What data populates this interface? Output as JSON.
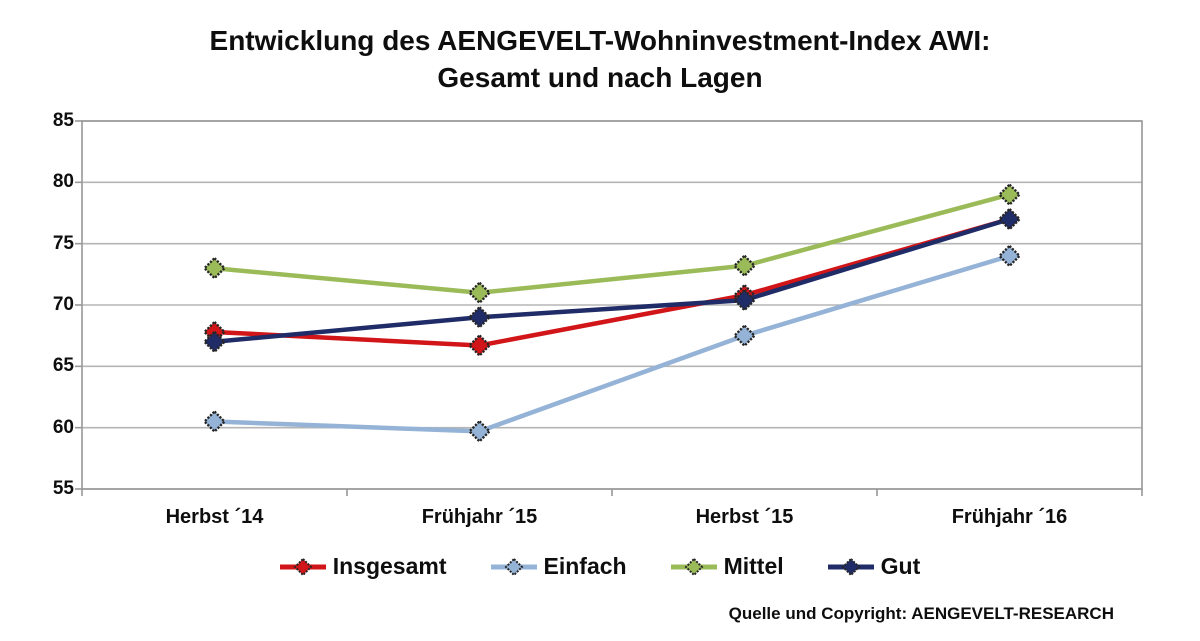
{
  "title": {
    "line1": "Entwicklung des AENGEVELT-Wohninvestment-Index AWI:",
    "line2": "Gesamt und nach Lagen"
  },
  "source": "Quelle und Copyright: AENGEVELT-RESEARCH",
  "chart_data": {
    "type": "line",
    "categories": [
      "Herbst ´14",
      "Frühjahr ´15",
      "Herbst ´15",
      "Frühjahr ´16"
    ],
    "series": [
      {
        "name": "Insgesamt",
        "color": "#d21518",
        "values": [
          67.8,
          66.7,
          70.8,
          77
        ]
      },
      {
        "name": "Einfach",
        "color": "#95b3d7",
        "values": [
          60.5,
          59.7,
          67.5,
          74
        ]
      },
      {
        "name": "Mittel",
        "color": "#9bbb59",
        "values": [
          73,
          71,
          73.2,
          79
        ]
      },
      {
        "name": "Gut",
        "color": "#1f2c67",
        "values": [
          67,
          69,
          70.4,
          77
        ]
      }
    ],
    "ylim": [
      55,
      85
    ],
    "ytick_step": 5,
    "yticks": [
      55,
      60,
      65,
      70,
      75,
      80,
      85
    ],
    "grid": true,
    "legend_position": "bottom",
    "marker": "diamond"
  },
  "style_colors": {
    "gridline": "#b5b5b5",
    "axis": "#989898",
    "marker_outline": "#262626"
  }
}
